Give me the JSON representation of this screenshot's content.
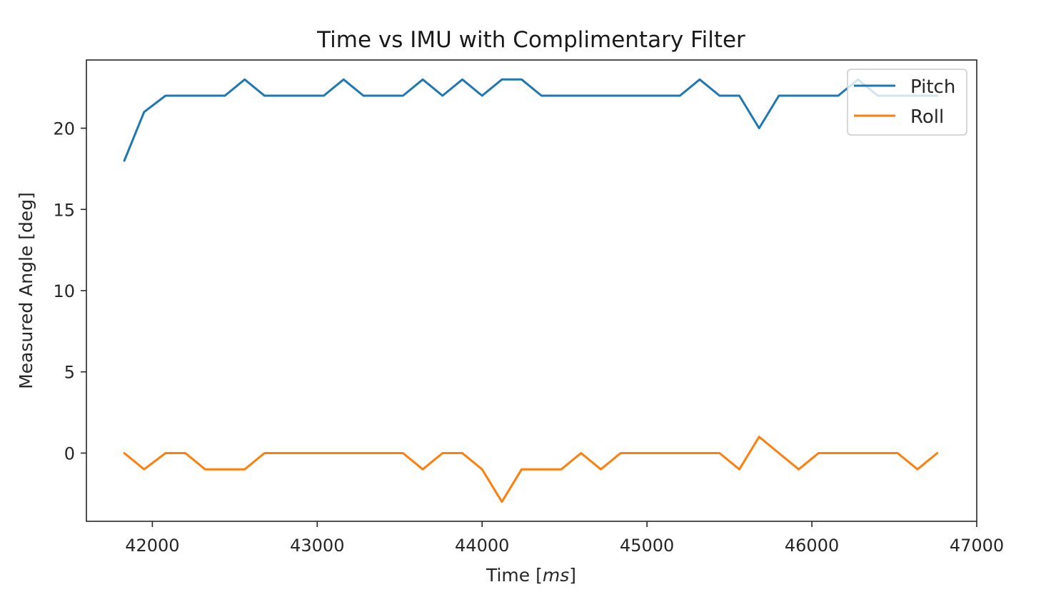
{
  "chart_data": {
    "type": "line",
    "title": "Time vs IMU with Complimentary Filter",
    "xlabel_prefix": "Time [",
    "xlabel_unit": "ms",
    "xlabel_suffix": "]",
    "ylabel": "Measured Angle [deg]",
    "xlim": [
      41600,
      47000
    ],
    "ylim": [
      -4.2,
      24.2
    ],
    "xticks": [
      42000,
      43000,
      44000,
      45000,
      46000,
      47000
    ],
    "yticks": [
      0,
      5,
      10,
      15,
      20
    ],
    "grid": false,
    "legend_placement": "upper-right",
    "x": [
      41830,
      41950,
      42080,
      42200,
      42320,
      42440,
      42560,
      42680,
      42800,
      42920,
      43040,
      43160,
      43280,
      43400,
      43520,
      43640,
      43760,
      43880,
      44000,
      44120,
      44240,
      44360,
      44480,
      44600,
      44720,
      44840,
      44960,
      45080,
      45200,
      45320,
      45440,
      45560,
      45680,
      45800,
      45920,
      46040,
      46160,
      46280,
      46400,
      46520,
      46640,
      46760
    ],
    "series": [
      {
        "name": "Pitch",
        "color": "#1f77b4",
        "values": [
          18,
          21,
          22,
          22,
          22,
          22,
          23,
          22,
          22,
          22,
          22,
          23,
          22,
          22,
          22,
          23,
          22,
          23,
          22,
          23,
          23,
          22,
          22,
          22,
          22,
          22,
          22,
          22,
          22,
          23,
          22,
          22,
          20,
          22,
          22,
          22,
          22,
          23,
          22,
          22,
          22,
          22
        ]
      },
      {
        "name": "Roll",
        "color": "#ff7f0e",
        "values": [
          0,
          -1,
          0,
          0,
          -1,
          -1,
          -1,
          0,
          0,
          0,
          0,
          0,
          0,
          0,
          0,
          -1,
          0,
          0,
          -1,
          -3,
          -1,
          -1,
          -1,
          0,
          -1,
          0,
          0,
          0,
          0,
          0,
          0,
          -1,
          1,
          0,
          -1,
          0,
          0,
          0,
          0,
          0,
          -1,
          0
        ]
      }
    ]
  }
}
